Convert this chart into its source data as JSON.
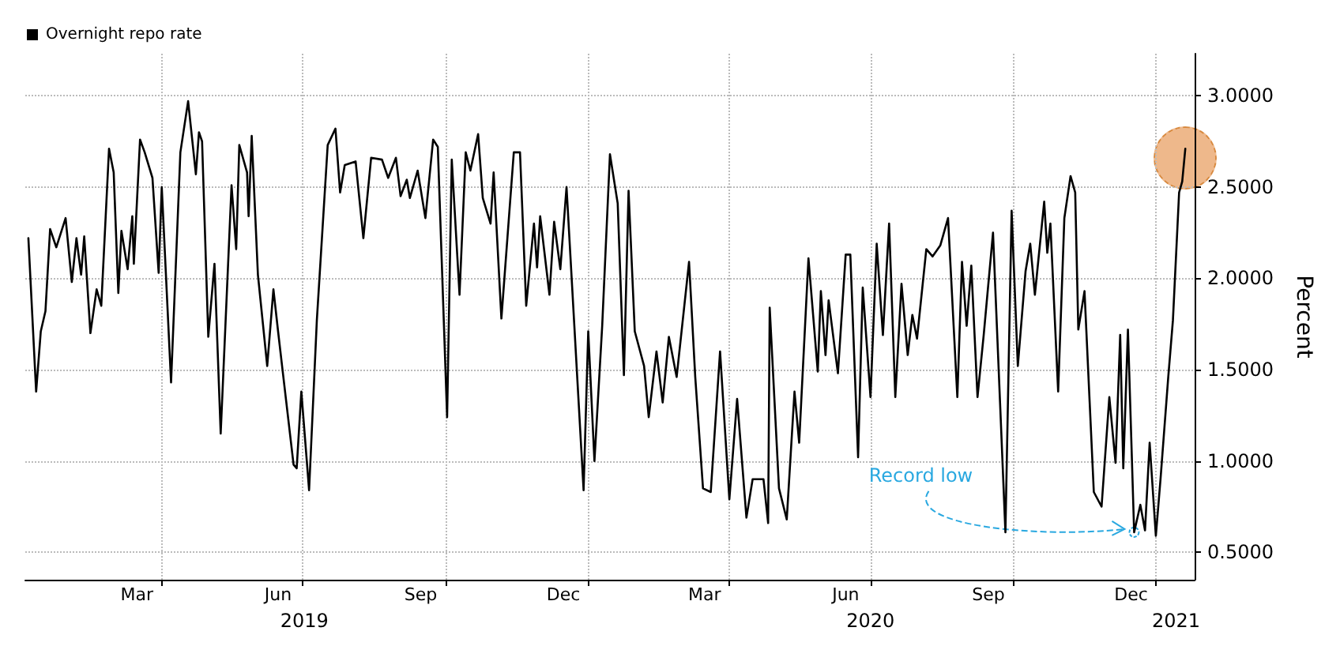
{
  "chart_data": {
    "type": "line",
    "ylabel": "Percent",
    "legend": "top left",
    "grid": true,
    "marker": "none",
    "line_style": "solid",
    "xlim": [
      "2019-01-03",
      "2021-01-26"
    ],
    "ylim": [
      0.35,
      3.23
    ],
    "yticks": [
      {
        "value": 0.5,
        "label": "0.5000"
      },
      {
        "value": 1,
        "label": "1.0000"
      },
      {
        "value": 1.5,
        "label": "1.5000"
      },
      {
        "value": 2,
        "label": "2.0000"
      },
      {
        "value": 2.5,
        "label": "2.5000"
      },
      {
        "value": 3,
        "label": "3.0000"
      }
    ],
    "xticks": [
      {
        "value": "2019-03-16",
        "label": "Mar"
      },
      {
        "value": "2019-06-15",
        "label": "Jun"
      },
      {
        "value": "2019-09-15",
        "label": "Sep"
      },
      {
        "value": "2019-12-16",
        "label": "Dec"
      },
      {
        "value": "2020-03-16",
        "label": "Mar"
      },
      {
        "value": "2020-06-15",
        "label": "Jun"
      },
      {
        "value": "2020-09-15",
        "label": "Sep"
      },
      {
        "value": "2020-12-16",
        "label": "Dec"
      },
      {
        "value": "2019-04-01",
        "label": null
      },
      {
        "value": "2019-07-01",
        "label": null
      },
      {
        "value": "2019-10-01",
        "label": null
      },
      {
        "value": "2020-01-01",
        "label": null
      },
      {
        "value": "2020-04-01",
        "label": null
      },
      {
        "value": "2020-07-01",
        "label": null
      },
      {
        "value": "2020-10-01",
        "label": null
      },
      {
        "value": "2021-01-01",
        "label": null
      }
    ],
    "x2lim": [
      "2019-01-03",
      "2021-01-26"
    ],
    "x2ticks": [
      {
        "value": "2019-07-02",
        "label": "2019"
      },
      {
        "value": "2020-07-01",
        "label": "2020"
      },
      {
        "value": "2021-01-14",
        "label": "2021"
      }
    ],
    "annotations": [
      {
        "text": "Record low",
        "x": "2020-12-18",
        "y": 0.61
      }
    ],
    "series": [
      {
        "name": "Overnight repo rate",
        "color": "#000000",
        "x": [
          "2019-01-05",
          "2019-01-10",
          "2019-01-13",
          "2019-01-16",
          "2019-01-19",
          "2019-01-23",
          "2019-01-29",
          "2019-02-02",
          "2019-02-05",
          "2019-02-08",
          "2019-02-10",
          "2019-02-14",
          "2019-02-18",
          "2019-02-21",
          "2019-02-26",
          "2019-03-01",
          "2019-03-04",
          "2019-03-06",
          "2019-03-10",
          "2019-03-13",
          "2019-03-14",
          "2019-03-18",
          "2019-03-21",
          "2019-03-26",
          "2019-03-30",
          "2019-04-01",
          "2019-04-07",
          "2019-04-13",
          "2019-04-18",
          "2019-04-23",
          "2019-04-25",
          "2019-04-27",
          "2019-05-01",
          "2019-05-05",
          "2019-05-09",
          "2019-05-16",
          "2019-05-19",
          "2019-05-21",
          "2019-05-26",
          "2019-05-27",
          "2019-05-29",
          "2019-06-02",
          "2019-06-08",
          "2019-06-12",
          "2019-06-15",
          "2019-06-18",
          "2019-06-25",
          "2019-06-27",
          "2019-06-30",
          "2019-07-05",
          "2019-07-10",
          "2019-07-17",
          "2019-07-22",
          "2019-07-25",
          "2019-07-28",
          "2019-08-04",
          "2019-08-09",
          "2019-08-14",
          "2019-08-21",
          "2019-08-25",
          "2019-08-30",
          "2019-09-02",
          "2019-09-06",
          "2019-09-08",
          "2019-09-13",
          "2019-09-18",
          "2019-09-23",
          "2019-09-26",
          "2019-10-02",
          "2019-10-05",
          "2019-10-10",
          "2019-10-14",
          "2019-10-17",
          "2019-10-22",
          "2019-10-25",
          "2019-10-30",
          "2019-11-01",
          "2019-11-06",
          "2019-11-14",
          "2019-11-18",
          "2019-11-22",
          "2019-11-27",
          "2019-11-29",
          "2019-12-01",
          "2019-12-07",
          "2019-12-10",
          "2019-12-14",
          "2019-12-18",
          "2019-12-29",
          "2020-01-01",
          "2020-01-05",
          "2020-01-10",
          "2020-01-15",
          "2020-01-20",
          "2020-01-24",
          "2020-01-27",
          "2020-01-31",
          "2020-02-06",
          "2020-02-09",
          "2020-02-14",
          "2020-02-18",
          "2020-02-22",
          "2020-02-27",
          "2020-03-06",
          "2020-03-10",
          "2020-03-15",
          "2020-03-20",
          "2020-03-26",
          "2020-04-01",
          "2020-04-06",
          "2020-04-12",
          "2020-04-16",
          "2020-04-23",
          "2020-04-26",
          "2020-04-27",
          "2020-05-03",
          "2020-05-08",
          "2020-05-13",
          "2020-05-16",
          "2020-05-22",
          "2020-05-28",
          "2020-05-30",
          "2020-06-02",
          "2020-06-04",
          "2020-06-10",
          "2020-06-15",
          "2020-06-18",
          "2020-06-23",
          "2020-06-26",
          "2020-07-01",
          "2020-07-05",
          "2020-07-09",
          "2020-07-13",
          "2020-07-17",
          "2020-07-21",
          "2020-07-25",
          "2020-07-28",
          "2020-07-31",
          "2020-08-06",
          "2020-08-10",
          "2020-08-15",
          "2020-08-20",
          "2020-08-26",
          "2020-08-29",
          "2020-09-01",
          "2020-09-04",
          "2020-09-08",
          "2020-09-12",
          "2020-09-18",
          "2020-09-26",
          "2020-09-30",
          "2020-10-04",
          "2020-10-09",
          "2020-10-12",
          "2020-10-15",
          "2020-10-21",
          "2020-10-23",
          "2020-10-25",
          "2020-10-30",
          "2020-11-03",
          "2020-11-07",
          "2020-11-10",
          "2020-11-12",
          "2020-11-16",
          "2020-11-22",
          "2020-11-27",
          "2020-12-02",
          "2020-12-06",
          "2020-12-09",
          "2020-12-11",
          "2020-12-14",
          "2020-12-18",
          "2020-12-22",
          "2020-12-25",
          "2020-12-28",
          "2021-01-01",
          "2021-01-04",
          "2021-01-09",
          "2021-01-12",
          "2021-01-16",
          "2021-01-18",
          "2021-01-20"
        ],
        "values": [
          2.22,
          1.38,
          1.71,
          1.82,
          2.27,
          2.17,
          2.33,
          1.98,
          2.22,
          2.02,
          2.23,
          1.7,
          1.94,
          1.85,
          2.71,
          2.58,
          1.92,
          2.26,
          2.05,
          2.34,
          2.08,
          2.76,
          2.69,
          2.55,
          2.03,
          2.5,
          1.43,
          2.69,
          2.97,
          2.57,
          2.8,
          2.75,
          1.68,
          2.08,
          1.15,
          2.51,
          2.16,
          2.73,
          2.58,
          2.34,
          2.78,
          2.02,
          1.52,
          1.94,
          1.71,
          1.49,
          0.98,
          0.96,
          1.38,
          0.84,
          1.77,
          2.73,
          2.82,
          2.47,
          2.62,
          2.64,
          2.22,
          2.66,
          2.65,
          2.55,
          2.66,
          2.45,
          2.54,
          2.44,
          2.59,
          2.33,
          2.76,
          2.72,
          1.24,
          2.65,
          1.91,
          2.69,
          2.59,
          2.79,
          2.44,
          2.3,
          2.58,
          1.78,
          2.69,
          2.69,
          1.85,
          2.3,
          2.06,
          2.34,
          1.91,
          2.31,
          2.05,
          2.5,
          0.84,
          1.71,
          1.0,
          1.74,
          2.68,
          2.41,
          1.47,
          2.48,
          1.71,
          1.52,
          1.24,
          1.6,
          1.32,
          1.68,
          1.46,
          2.09,
          1.46,
          0.85,
          0.83,
          1.6,
          0.79,
          1.34,
          0.69,
          0.9,
          0.9,
          0.66,
          1.84,
          0.85,
          0.68,
          1.38,
          1.1,
          2.11,
          1.49,
          1.93,
          1.58,
          1.88,
          1.48,
          2.13,
          2.13,
          1.02,
          1.95,
          1.35,
          2.19,
          1.69,
          2.3,
          1.35,
          1.97,
          1.58,
          1.8,
          1.67,
          2.16,
          2.12,
          2.18,
          2.33,
          1.35,
          2.09,
          1.74,
          2.07,
          1.35,
          1.69,
          2.25,
          0.61,
          2.37,
          1.52,
          2.04,
          2.19,
          1.91,
          2.42,
          2.14,
          2.3,
          1.38,
          2.33,
          2.56,
          2.47,
          1.72,
          1.93,
          0.83,
          0.75,
          1.35,
          0.99,
          1.69,
          0.96,
          1.72,
          0.61,
          0.76,
          0.62,
          1.1,
          0.59,
          0.9,
          1.46,
          1.77,
          2.47,
          2.53,
          2.71
        ]
      }
    ]
  }
}
